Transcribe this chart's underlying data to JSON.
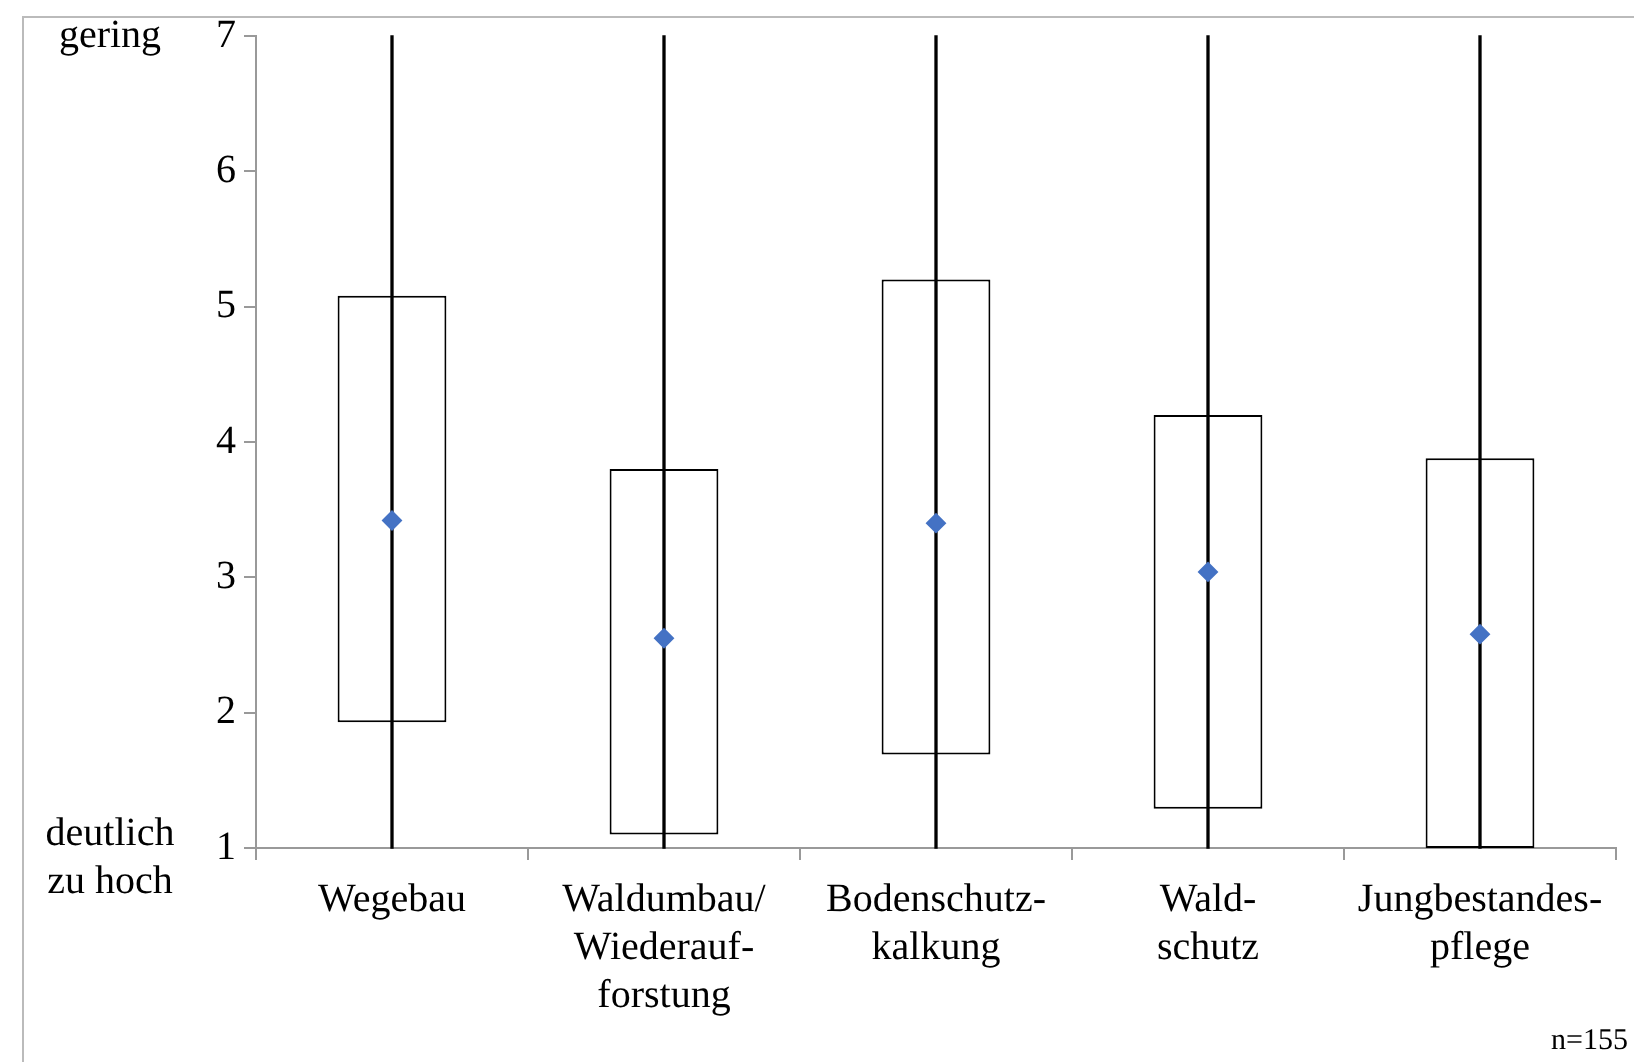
{
  "chart_data": {
    "type": "box",
    "categories": [
      "Wegebau",
      "Waldumbau/\nWiederauf-\nforstung",
      "Bodenschutz-\nkalkung",
      "Wald-\nschutz",
      "Jungbestandes-\npflege"
    ],
    "series": [
      {
        "color": "#000000",
        "boxes": [
          {
            "low": 1,
            "q1": 1.93,
            "median": null,
            "q3": 5.08,
            "high": 7,
            "mean": 3.42
          },
          {
            "low": 1,
            "q1": 1.1,
            "median": null,
            "q3": 3.8,
            "high": 7,
            "mean": 2.55
          },
          {
            "low": 1,
            "q1": 1.69,
            "median": null,
            "q3": 5.2,
            "high": 7,
            "mean": 3.4
          },
          {
            "low": 1,
            "q1": 1.29,
            "median": null,
            "q3": 4.2,
            "high": 7,
            "mean": 3.04
          },
          {
            "low": 1,
            "q1": 1,
            "median": null,
            "q3": 3.88,
            "high": 7,
            "mean": 2.58
          }
        ]
      }
    ],
    "ylim": [
      1,
      7
    ],
    "yticks": [
      1,
      2,
      3,
      4,
      5,
      6,
      7
    ],
    "grid": false,
    "legend": false,
    "marker": "diamond",
    "annotations": [
      "gering",
      "deutlich\nzu hoch",
      "n=155"
    ]
  }
}
